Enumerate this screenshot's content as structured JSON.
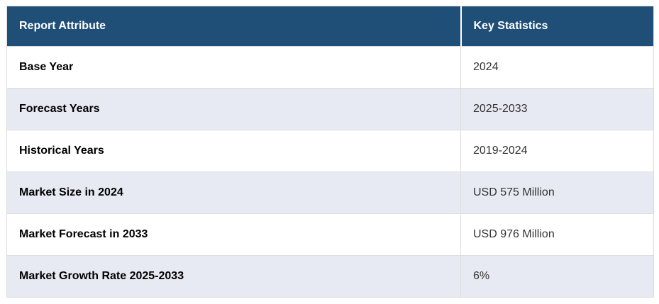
{
  "chart_data": {
    "type": "table",
    "columns": [
      "Report Attribute",
      "Key Statistics"
    ],
    "rows": [
      [
        "Base Year",
        "2024"
      ],
      [
        "Forecast Years",
        "2025-2033"
      ],
      [
        "Historical Years",
        "2019-2024"
      ],
      [
        "Market Size in 2024",
        "USD 575 Million"
      ],
      [
        "Market Forecast in 2033",
        "USD 976 Million"
      ],
      [
        "Market Growth Rate 2025-2033",
        "6%"
      ]
    ]
  },
  "colors": {
    "header_bg": "#1F4E76",
    "header_text": "#FFFFFF",
    "row_bg": "#FFFFFF",
    "row_alt_bg": "#E8EAF3",
    "border": "#DDDDDD",
    "attribute_text": "#000000",
    "value_text": "#333333"
  }
}
